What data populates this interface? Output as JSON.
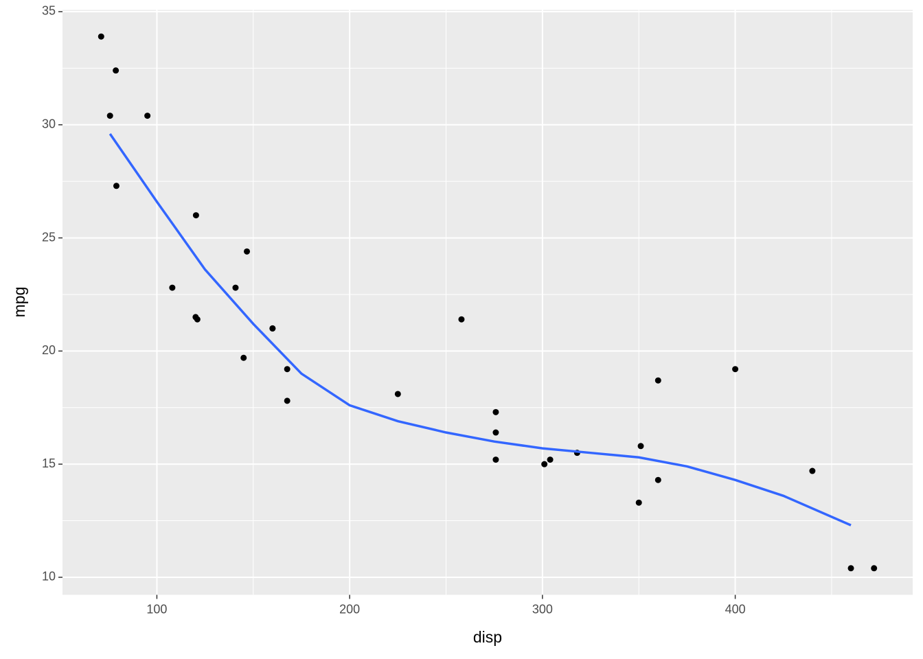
{
  "chart_data": {
    "type": "scatter",
    "x_label": "disp",
    "y_label": "mpg",
    "series": [
      {
        "name": "points",
        "color": "#000000",
        "x": [
          160,
          160,
          108,
          258,
          360,
          225,
          360,
          146.7,
          140.8,
          167.6,
          167.6,
          275.8,
          275.8,
          275.8,
          472,
          460,
          440,
          78.7,
          75.7,
          71.1,
          120.1,
          318,
          304,
          350,
          400,
          79,
          120.3,
          95.1,
          351,
          145,
          301,
          121
        ],
        "values": [
          21.0,
          21.0,
          22.8,
          21.4,
          18.7,
          18.1,
          14.3,
          24.4,
          22.8,
          19.2,
          17.8,
          16.4,
          17.3,
          15.2,
          10.4,
          10.4,
          14.7,
          32.4,
          30.4,
          33.9,
          21.5,
          15.5,
          15.2,
          13.3,
          19.2,
          27.3,
          26.0,
          30.4,
          15.8,
          19.7,
          15.0,
          21.4
        ]
      },
      {
        "name": "smooth",
        "color": "#3366FF",
        "style": "line",
        "x": [
          75.7,
          100,
          125,
          150,
          175,
          200,
          225,
          250,
          275,
          300,
          325,
          350,
          375,
          400,
          425,
          460
        ],
        "values": [
          29.6,
          26.6,
          23.6,
          21.2,
          19.0,
          17.6,
          16.9,
          16.4,
          16.0,
          15.7,
          15.5,
          15.3,
          14.9,
          14.3,
          13.6,
          12.3
        ]
      }
    ],
    "xlim": [
      51.05,
      492.05
    ],
    "ylim": [
      9.225,
      35.075
    ],
    "xticks": [
      100,
      200,
      300,
      400
    ],
    "yticks": [
      10,
      15,
      20,
      25,
      30,
      35
    ],
    "xminor": [
      150,
      250,
      350,
      450
    ],
    "yminor": [
      12.5,
      17.5,
      22.5,
      27.5,
      32.5
    ],
    "grid": true,
    "panel_color": "#EBEBEB"
  }
}
